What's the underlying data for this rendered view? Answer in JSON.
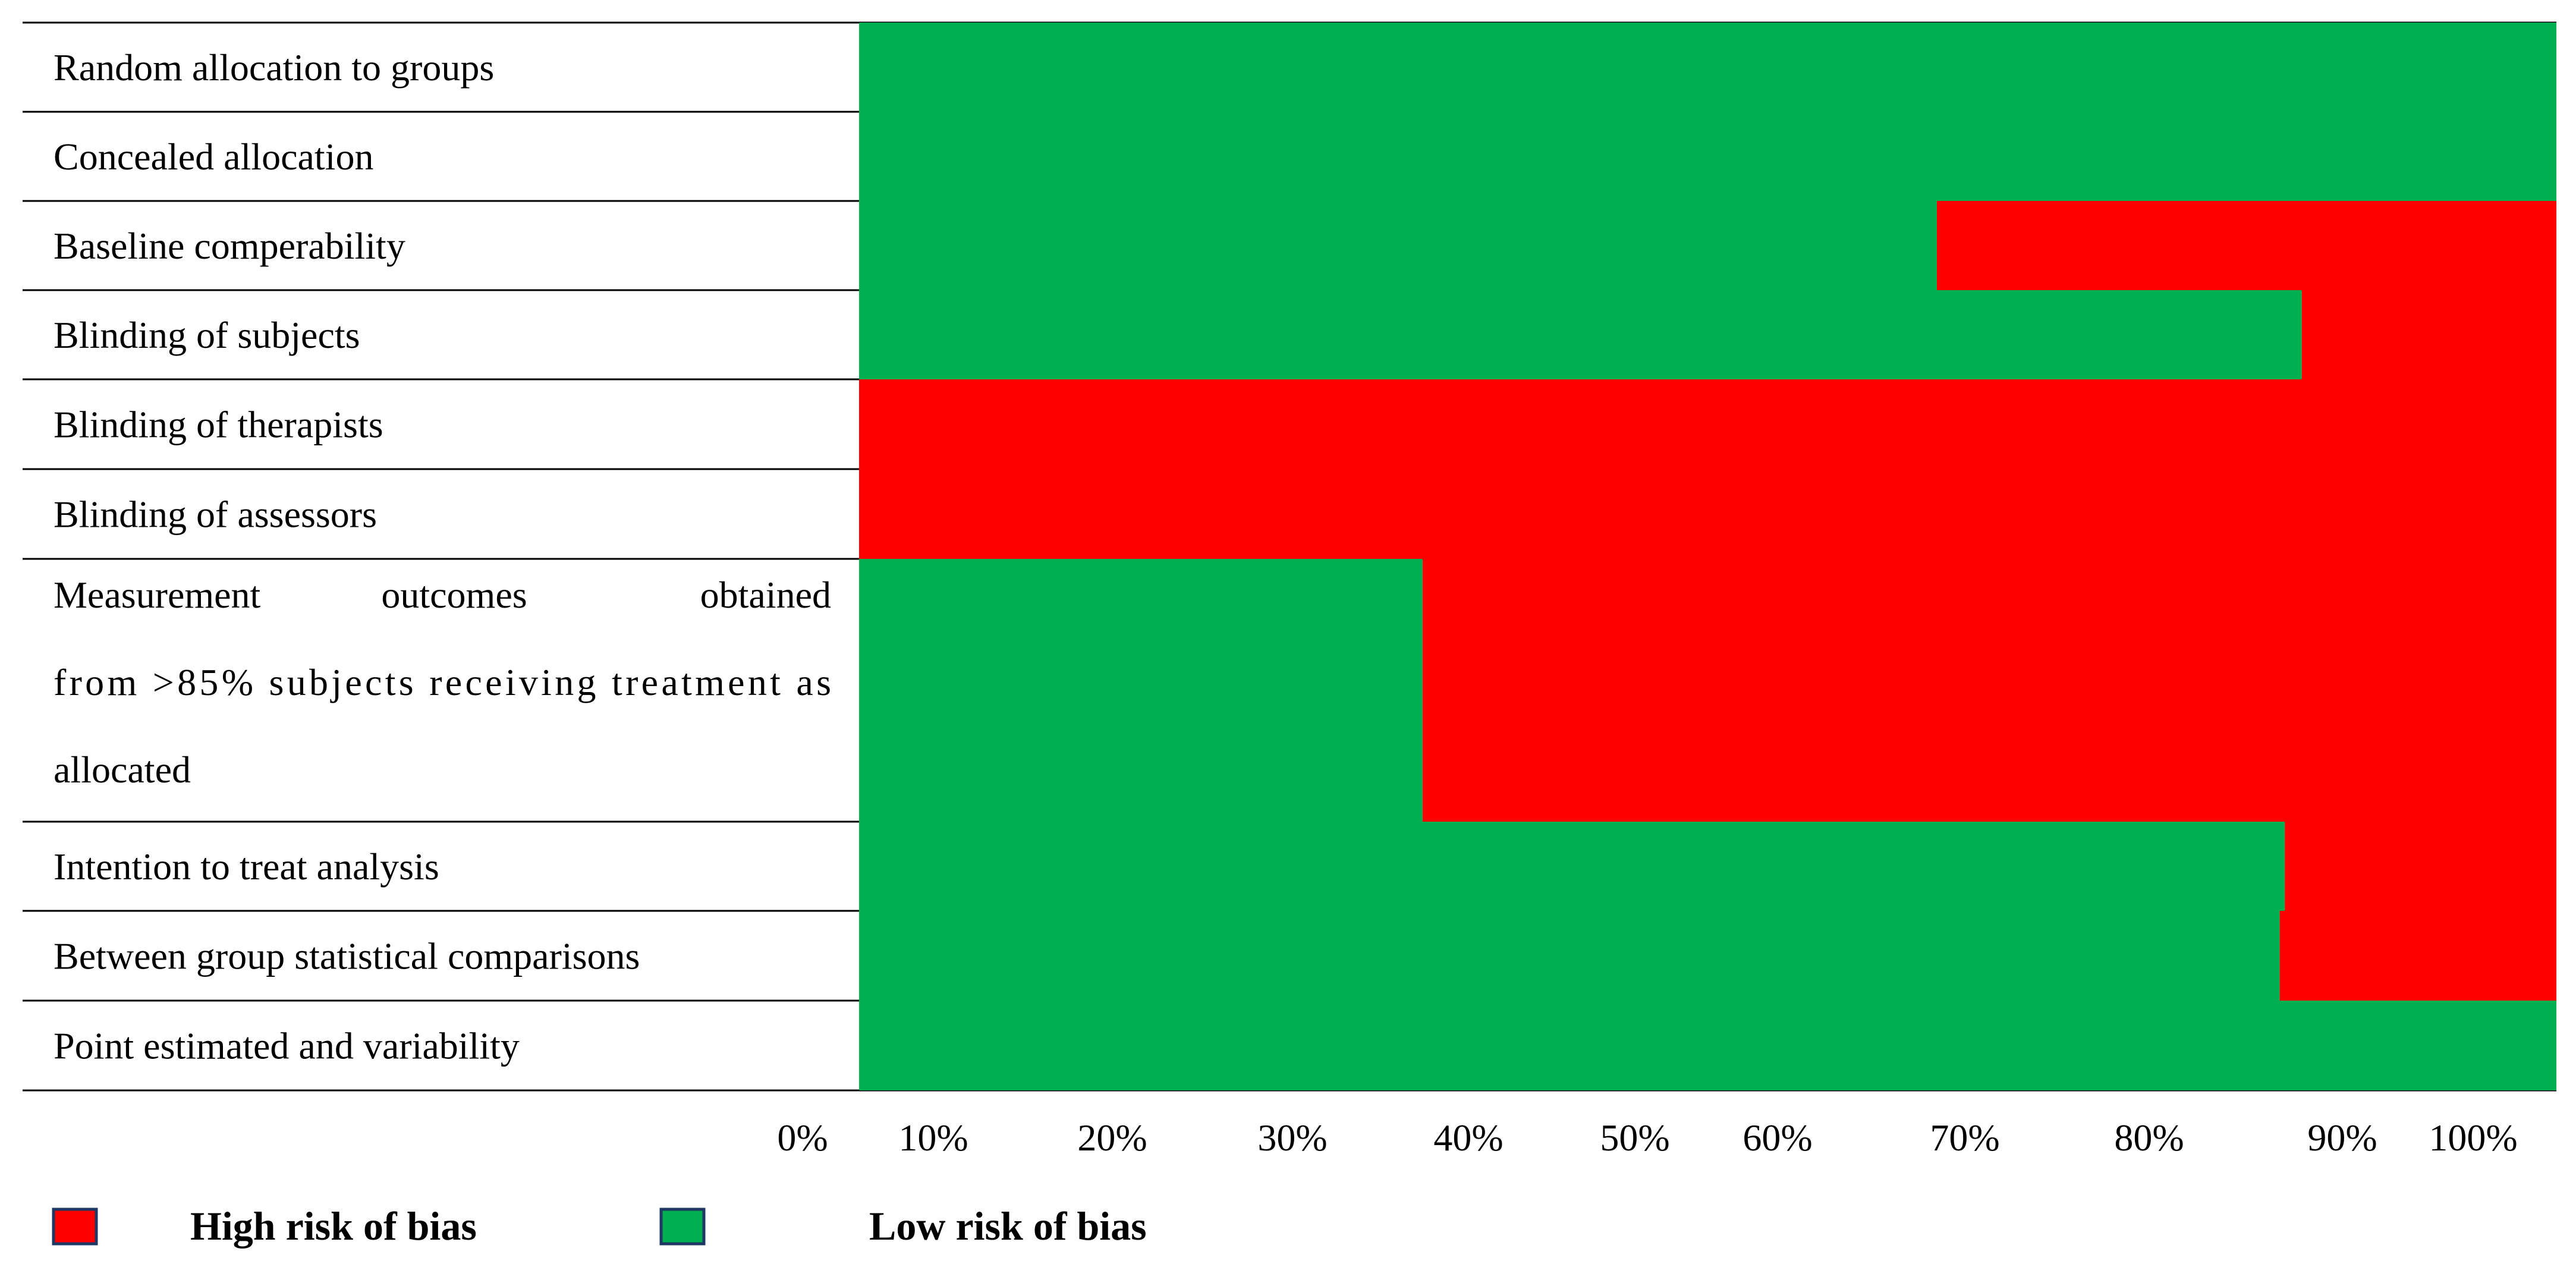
{
  "chart_data": {
    "type": "bar",
    "orientation": "horizontal",
    "stacked": true,
    "categories": [
      "Random allocation to groups",
      "Concealed allocation",
      "Baseline comperability",
      "Blinding of subjects",
      "Blinding of therapists",
      "Blinding of assessors",
      "Measurement outcomes obtained from >85% subjects receiving treatment as allocated",
      "Intention to treat analysis",
      "Between group statistical comparisons",
      "Point estimated and variability"
    ],
    "category_lines": [
      [
        "Random allocation to groups"
      ],
      [
        "Concealed allocation"
      ],
      [
        "Baseline comperability"
      ],
      [
        "Blinding of subjects"
      ],
      [
        "Blinding of therapists"
      ],
      [
        "Blinding of assessors"
      ],
      [
        "Measurement",
        "outcomes",
        "obtained",
        "from >85%  subjects receiving treatment as",
        "allocated"
      ],
      [
        "Intention to treat analysis"
      ],
      [
        "Between group statistical comparisons"
      ],
      [
        "Point estimated and variability"
      ]
    ],
    "series": [
      {
        "name": "Low risk of bias",
        "color": "#00b050",
        "values": [
          100,
          100,
          63.5,
          85,
          0,
          0,
          33.2,
          84,
          83.7,
          100
        ]
      },
      {
        "name": "High risk of bias",
        "color": "#ff0000",
        "values": [
          0,
          0,
          36.5,
          15,
          100,
          100,
          66.8,
          16,
          16.3,
          0
        ]
      }
    ],
    "x_ticks": [
      "0%",
      "10%",
      "20%",
      "30%",
      "40%",
      "50%",
      "60%",
      "70%",
      "80%",
      "90%",
      "100%"
    ],
    "xlim": [
      0,
      100
    ],
    "unit": "%",
    "grid": false,
    "legend_position": "bottom-left",
    "legend": [
      {
        "label": "High risk of bias",
        "color": "#ff0000"
      },
      {
        "label": "Low risk of bias",
        "color": "#00b050"
      }
    ]
  }
}
